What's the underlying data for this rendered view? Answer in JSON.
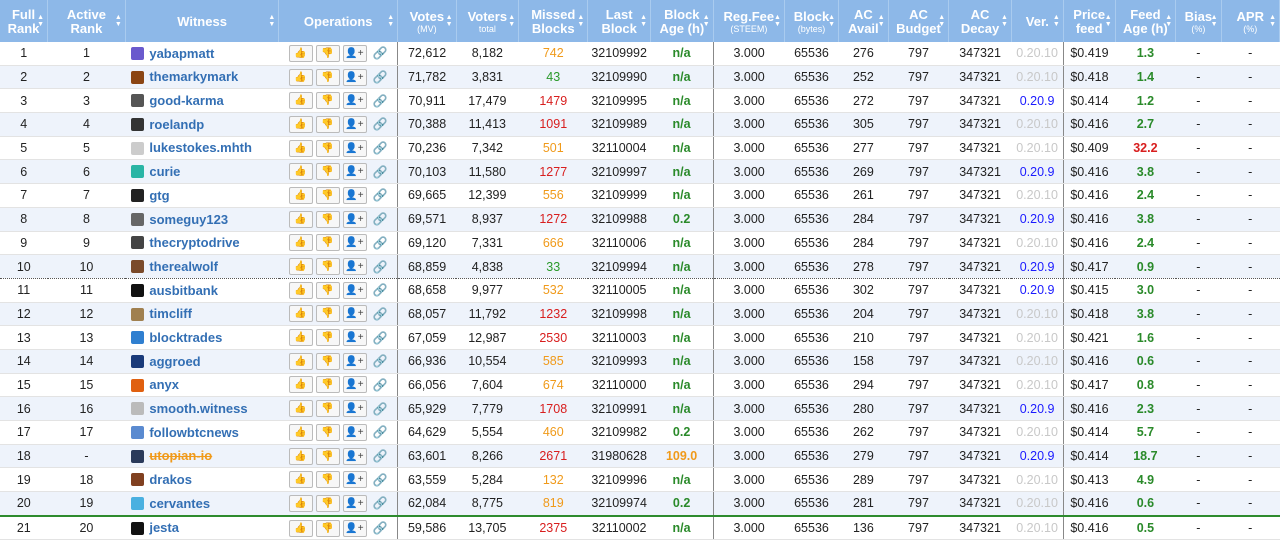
{
  "headers": [
    {
      "label": "Full Rank",
      "sub": "",
      "sortable": true
    },
    {
      "label": "Active Rank",
      "sub": "",
      "sortable": true
    },
    {
      "label": "Witness",
      "sub": "",
      "sortable": true
    },
    {
      "label": "Operations",
      "sub": "",
      "sortable": true
    },
    {
      "label": "Votes",
      "sub": "(MV)",
      "sortable": true
    },
    {
      "label": "Voters",
      "sub": "total",
      "sortable": true
    },
    {
      "label": "Missed Blocks",
      "sub": "",
      "sortable": true
    },
    {
      "label": "Last Block",
      "sub": "",
      "sortable": true
    },
    {
      "label": "Block Age (h)",
      "sub": "",
      "sortable": true
    },
    {
      "label": "Reg.Fee",
      "sub": "(STEEM)",
      "sortable": true
    },
    {
      "label": "Block",
      "sub": "(bytes)",
      "sortable": true
    },
    {
      "label": "AC Avail",
      "sub": "",
      "sortable": true
    },
    {
      "label": "AC Budget",
      "sub": "",
      "sortable": true
    },
    {
      "label": "AC Decay",
      "sub": "",
      "sortable": true
    },
    {
      "label": "Ver.",
      "sub": "",
      "sortable": true
    },
    {
      "label": "Price feed",
      "sub": "",
      "sortable": true
    },
    {
      "label": "Feed Age (h)",
      "sub": "",
      "sortable": true
    },
    {
      "label": "Bias",
      "sub": "(%)",
      "sortable": true
    },
    {
      "label": "APR",
      "sub": "(%)",
      "sortable": true
    }
  ],
  "ops_icons": {
    "up": "thumbs-up-icon",
    "down": "thumbs-down-icon",
    "proxy": "add-proxy-icon",
    "link": "link-icon"
  },
  "colors": {
    "header_bg": "#8db8e8",
    "link": "#336fb4",
    "green": "#2a8a2a",
    "orange": "#f09a1a",
    "red": "#d81e1e",
    "new_version": "#1a1aff",
    "old_version": "#c8c8c8"
  },
  "rows": [
    {
      "full": "1",
      "active": "1",
      "name": "yabapmatt",
      "avatar": "#6a5acd",
      "votes": "72,612",
      "voters": "8,182",
      "missed": "742",
      "missed_color": "orange",
      "last": "32109992",
      "age": "n/a",
      "age_color": "green",
      "fee": "3.000",
      "block": "65536",
      "avail": "276",
      "budget": "797",
      "decay": "347321",
      "ver": "0.20.10",
      "ver_new": false,
      "price": "$0.419",
      "feed_age": "1.3",
      "feed_color": "green",
      "bias": "-",
      "apr": "-"
    },
    {
      "full": "2",
      "active": "2",
      "name": "themarkymark",
      "avatar": "#8b4513",
      "votes": "71,782",
      "voters": "3,831",
      "missed": "43",
      "missed_color": "green",
      "last": "32109990",
      "age": "n/a",
      "age_color": "green",
      "fee": "3.000",
      "block": "65536",
      "avail": "252",
      "budget": "797",
      "decay": "347321",
      "ver": "0.20.10",
      "ver_new": false,
      "price": "$0.418",
      "feed_age": "1.4",
      "feed_color": "green",
      "bias": "-",
      "apr": "-"
    },
    {
      "full": "3",
      "active": "3",
      "name": "good-karma",
      "avatar": "#555",
      "votes": "70,911",
      "voters": "17,479",
      "missed": "1479",
      "missed_color": "red",
      "last": "32109995",
      "age": "n/a",
      "age_color": "green",
      "fee": "3.000",
      "block": "65536",
      "avail": "272",
      "budget": "797",
      "decay": "347321",
      "ver": "0.20.9",
      "ver_new": true,
      "price": "$0.414",
      "feed_age": "1.2",
      "feed_color": "green",
      "bias": "-",
      "apr": "-"
    },
    {
      "full": "4",
      "active": "4",
      "name": "roelandp",
      "avatar": "#333",
      "votes": "70,388",
      "voters": "11,413",
      "missed": "1091",
      "missed_color": "red",
      "last": "32109989",
      "age": "n/a",
      "age_color": "green",
      "fee": "3.000",
      "block": "65536",
      "avail": "305",
      "budget": "797",
      "decay": "347321",
      "ver": "0.20.10",
      "ver_new": false,
      "price": "$0.416",
      "feed_age": "2.7",
      "feed_color": "green",
      "bias": "-",
      "apr": "-"
    },
    {
      "full": "5",
      "active": "5",
      "name": "lukestokes.mhth",
      "avatar": "#ccc",
      "votes": "70,236",
      "voters": "7,342",
      "missed": "501",
      "missed_color": "orange",
      "last": "32110004",
      "age": "n/a",
      "age_color": "green",
      "fee": "3.000",
      "block": "65536",
      "avail": "277",
      "budget": "797",
      "decay": "347321",
      "ver": "0.20.10",
      "ver_new": false,
      "price": "$0.409",
      "feed_age": "32.2",
      "feed_color": "red",
      "bias": "-",
      "apr": "-"
    },
    {
      "full": "6",
      "active": "6",
      "name": "curie",
      "avatar": "#2ab5a5",
      "votes": "70,103",
      "voters": "11,580",
      "missed": "1277",
      "missed_color": "red",
      "last": "32109997",
      "age": "n/a",
      "age_color": "green",
      "fee": "3.000",
      "block": "65536",
      "avail": "269",
      "budget": "797",
      "decay": "347321",
      "ver": "0.20.9",
      "ver_new": true,
      "price": "$0.416",
      "feed_age": "3.8",
      "feed_color": "green",
      "bias": "-",
      "apr": "-"
    },
    {
      "full": "7",
      "active": "7",
      "name": "gtg",
      "avatar": "#222",
      "votes": "69,665",
      "voters": "12,399",
      "missed": "556",
      "missed_color": "orange",
      "last": "32109999",
      "age": "n/a",
      "age_color": "green",
      "fee": "3.000",
      "block": "65536",
      "avail": "261",
      "budget": "797",
      "decay": "347321",
      "ver": "0.20.10",
      "ver_new": false,
      "price": "$0.416",
      "feed_age": "2.4",
      "feed_color": "green",
      "bias": "-",
      "apr": "-"
    },
    {
      "full": "8",
      "active": "8",
      "name": "someguy123",
      "avatar": "#666",
      "votes": "69,571",
      "voters": "8,937",
      "missed": "1272",
      "missed_color": "red",
      "last": "32109988",
      "age": "0.2",
      "age_color": "green",
      "fee": "3.000",
      "block": "65536",
      "avail": "284",
      "budget": "797",
      "decay": "347321",
      "ver": "0.20.9",
      "ver_new": true,
      "price": "$0.416",
      "feed_age": "3.8",
      "feed_color": "green",
      "bias": "-",
      "apr": "-"
    },
    {
      "full": "9",
      "active": "9",
      "name": "thecryptodrive",
      "avatar": "#444",
      "votes": "69,120",
      "voters": "7,331",
      "missed": "666",
      "missed_color": "orange",
      "last": "32110006",
      "age": "n/a",
      "age_color": "green",
      "fee": "3.000",
      "block": "65536",
      "avail": "284",
      "budget": "797",
      "decay": "347321",
      "ver": "0.20.10",
      "ver_new": false,
      "price": "$0.416",
      "feed_age": "2.4",
      "feed_color": "green",
      "bias": "-",
      "apr": "-"
    },
    {
      "full": "10",
      "active": "10",
      "name": "therealwolf",
      "avatar": "#7a4a2a",
      "votes": "68,859",
      "voters": "4,838",
      "missed": "33",
      "missed_color": "green",
      "last": "32109994",
      "age": "n/a",
      "age_color": "green",
      "fee": "3.000",
      "block": "65536",
      "avail": "278",
      "budget": "797",
      "decay": "347321",
      "ver": "0.20.9",
      "ver_new": true,
      "price": "$0.417",
      "feed_age": "0.9",
      "feed_color": "green",
      "bias": "-",
      "apr": "-"
    },
    {
      "full": "11",
      "active": "11",
      "name": "ausbitbank",
      "avatar": "#111",
      "votes": "68,658",
      "voters": "9,977",
      "missed": "532",
      "missed_color": "orange",
      "last": "32110005",
      "age": "n/a",
      "age_color": "green",
      "fee": "3.000",
      "block": "65536",
      "avail": "302",
      "budget": "797",
      "decay": "347321",
      "ver": "0.20.9",
      "ver_new": true,
      "price": "$0.415",
      "feed_age": "3.0",
      "feed_color": "green",
      "bias": "-",
      "apr": "-"
    },
    {
      "full": "12",
      "active": "12",
      "name": "timcliff",
      "avatar": "#a08050",
      "votes": "68,057",
      "voters": "11,792",
      "missed": "1232",
      "missed_color": "red",
      "last": "32109998",
      "age": "n/a",
      "age_color": "green",
      "fee": "3.000",
      "block": "65536",
      "avail": "204",
      "budget": "797",
      "decay": "347321",
      "ver": "0.20.10",
      "ver_new": false,
      "price": "$0.418",
      "feed_age": "3.8",
      "feed_color": "green",
      "bias": "-",
      "apr": "-"
    },
    {
      "full": "13",
      "active": "13",
      "name": "blocktrades",
      "avatar": "#2f7fd0",
      "votes": "67,059",
      "voters": "12,987",
      "missed": "2530",
      "missed_color": "red",
      "last": "32110003",
      "age": "n/a",
      "age_color": "green",
      "fee": "3.000",
      "block": "65536",
      "avail": "210",
      "budget": "797",
      "decay": "347321",
      "ver": "0.20.10",
      "ver_new": false,
      "price": "$0.421",
      "feed_age": "1.6",
      "feed_color": "green",
      "bias": "-",
      "apr": "-"
    },
    {
      "full": "14",
      "active": "14",
      "name": "aggroed",
      "avatar": "#1a3a7a",
      "votes": "66,936",
      "voters": "10,554",
      "missed": "585",
      "missed_color": "orange",
      "last": "32109993",
      "age": "n/a",
      "age_color": "green",
      "fee": "3.000",
      "block": "65536",
      "avail": "158",
      "budget": "797",
      "decay": "347321",
      "ver": "0.20.10",
      "ver_new": false,
      "price": "$0.416",
      "feed_age": "0.6",
      "feed_color": "green",
      "bias": "-",
      "apr": "-"
    },
    {
      "full": "15",
      "active": "15",
      "name": "anyx",
      "avatar": "#e06010",
      "votes": "66,056",
      "voters": "7,604",
      "missed": "674",
      "missed_color": "orange",
      "last": "32110000",
      "age": "n/a",
      "age_color": "green",
      "fee": "3.000",
      "block": "65536",
      "avail": "294",
      "budget": "797",
      "decay": "347321",
      "ver": "0.20.10",
      "ver_new": false,
      "price": "$0.417",
      "feed_age": "0.8",
      "feed_color": "green",
      "bias": "-",
      "apr": "-"
    },
    {
      "full": "16",
      "active": "16",
      "name": "smooth.witness",
      "avatar": "#bbb",
      "votes": "65,929",
      "voters": "7,779",
      "missed": "1708",
      "missed_color": "red",
      "last": "32109991",
      "age": "n/a",
      "age_color": "green",
      "fee": "3.000",
      "block": "65536",
      "avail": "280",
      "budget": "797",
      "decay": "347321",
      "ver": "0.20.9",
      "ver_new": true,
      "price": "$0.416",
      "feed_age": "2.3",
      "feed_color": "green",
      "bias": "-",
      "apr": "-"
    },
    {
      "full": "17",
      "active": "17",
      "name": "followbtcnews",
      "avatar": "#5a8ad0",
      "votes": "64,629",
      "voters": "5,554",
      "missed": "460",
      "missed_color": "orange",
      "last": "32109982",
      "age": "0.2",
      "age_color": "green",
      "fee": "3.000",
      "block": "65536",
      "avail": "262",
      "budget": "797",
      "decay": "347321",
      "ver": "0.20.10",
      "ver_new": false,
      "price": "$0.414",
      "feed_age": "5.7",
      "feed_color": "green",
      "bias": "-",
      "apr": "-"
    },
    {
      "full": "18",
      "active": "-",
      "name": "utopian-io",
      "disabled": true,
      "avatar": "#2a3a5a",
      "votes": "63,601",
      "voters": "8,266",
      "missed": "2671",
      "missed_color": "red",
      "last": "31980628",
      "age": "109.0",
      "age_color": "orange",
      "fee": "3.000",
      "block": "65536",
      "avail": "279",
      "budget": "797",
      "decay": "347321",
      "ver": "0.20.9",
      "ver_new": true,
      "price": "$0.414",
      "feed_age": "18.7",
      "feed_color": "green",
      "bias": "-",
      "apr": "-"
    },
    {
      "full": "19",
      "active": "18",
      "name": "drakos",
      "avatar": "#804020",
      "votes": "63,559",
      "voters": "5,284",
      "missed": "132",
      "missed_color": "orange",
      "last": "32109996",
      "age": "n/a",
      "age_color": "green",
      "fee": "3.000",
      "block": "65536",
      "avail": "289",
      "budget": "797",
      "decay": "347321",
      "ver": "0.20.10",
      "ver_new": false,
      "price": "$0.413",
      "feed_age": "4.9",
      "feed_color": "green",
      "bias": "-",
      "apr": "-"
    },
    {
      "full": "20",
      "active": "19",
      "name": "cervantes",
      "avatar": "#4ab0e0",
      "votes": "62,084",
      "voters": "8,775",
      "missed": "819",
      "missed_color": "orange",
      "last": "32109974",
      "age": "0.2",
      "age_color": "green",
      "fee": "3.000",
      "block": "65536",
      "avail": "281",
      "budget": "797",
      "decay": "347321",
      "ver": "0.20.10",
      "ver_new": false,
      "price": "$0.416",
      "feed_age": "0.6",
      "feed_color": "green",
      "bias": "-",
      "apr": "-"
    },
    {
      "full": "21",
      "active": "20",
      "name": "jesta",
      "avatar": "#111",
      "votes": "59,586",
      "voters": "13,705",
      "missed": "2375",
      "missed_color": "red",
      "last": "32110002",
      "age": "n/a",
      "age_color": "green",
      "fee": "3.000",
      "block": "65536",
      "avail": "136",
      "budget": "797",
      "decay": "347321",
      "ver": "0.20.10",
      "ver_new": false,
      "price": "$0.416",
      "feed_age": "0.5",
      "feed_color": "green",
      "bias": "-",
      "apr": "-"
    }
  ]
}
